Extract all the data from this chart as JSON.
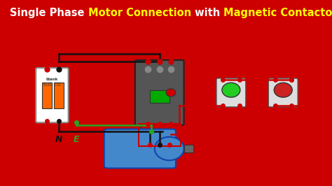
{
  "title_parts": [
    {
      "text": "Single Phase ",
      "color": "white"
    },
    {
      "text": "Motor Connection",
      "color": "yellow"
    },
    {
      "text": " with ",
      "color": "white"
    },
    {
      "text": "Magnetic Contactor",
      "color": "yellow"
    }
  ],
  "title_bg": "#000000",
  "title_border": "#cc0000",
  "main_bg": "#f0f0f0",
  "border_color": "#cc0000",
  "fig_bg": "#cc0000",
  "wire_red": "#cc0000",
  "wire_black": "#111111",
  "wire_green": "#22aa22",
  "label_L_color": "#cc0000",
  "label_N_color": "#111111",
  "label_E_color": "#22aa22",
  "dot_red": "#cc0000",
  "dot_black": "#111111",
  "fig_width": 4.74,
  "fig_height": 2.66,
  "dpi": 100
}
